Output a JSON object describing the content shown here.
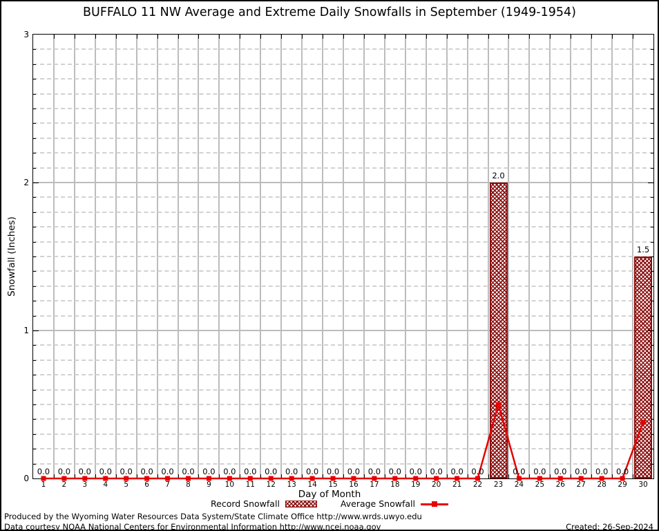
{
  "page": {
    "title": "BUFFALO 11 NW Average and Extreme Daily Snowfalls in September (1949-1954)",
    "footer": {
      "line1": "Produced by the Wyoming Water Resources Data System/State Climate Office http://www.wrds.uwyo.edu",
      "line2": "Data courtesy NOAA National Centers for Environmental Information http://www.ncei.noaa.gov",
      "created": "Created: 26-Sep-2024"
    }
  },
  "legend": {
    "record_label": "Record Snowfall",
    "average_label": "Average Snowfall"
  },
  "chart_data": {
    "type": "bar",
    "title": "BUFFALO 11 NW Average and Extreme Daily Snowfalls in September (1949-1954)",
    "xlabel": "Day of Month",
    "ylabel": "Snowfall (Inches)",
    "xlim": [
      0.5,
      30.5
    ],
    "ylim": [
      0,
      3
    ],
    "yticks": [
      0,
      1,
      2,
      3
    ],
    "minor_y_step": 0.1,
    "grid": true,
    "legend_position": "bottom-center",
    "categories": [
      1,
      2,
      3,
      4,
      5,
      6,
      7,
      8,
      9,
      10,
      11,
      12,
      13,
      14,
      15,
      16,
      17,
      18,
      19,
      20,
      21,
      22,
      23,
      24,
      25,
      26,
      27,
      28,
      29,
      30
    ],
    "series": [
      {
        "name": "Record Snowfall",
        "type": "bar",
        "color": "#8b0f0f",
        "values": [
          0,
          0,
          0,
          0,
          0,
          0,
          0,
          0,
          0,
          0,
          0,
          0,
          0,
          0,
          0,
          0,
          0,
          0,
          0,
          0,
          0,
          0,
          2.0,
          0,
          0,
          0,
          0,
          0,
          0,
          1.5
        ]
      },
      {
        "name": "Average Snowfall",
        "type": "line",
        "color": "#e60000",
        "values": [
          0,
          0,
          0,
          0,
          0,
          0,
          0,
          0,
          0,
          0,
          0,
          0,
          0,
          0,
          0,
          0,
          0,
          0,
          0,
          0,
          0,
          0,
          0.5,
          0,
          0,
          0,
          0,
          0,
          0,
          0.38
        ]
      }
    ],
    "point_labels": [
      "0.0",
      "0.0",
      "0.0",
      "0.0",
      "0.0",
      "0.0",
      "0.0",
      "0.0",
      "0.0",
      "0.0",
      "0.0",
      "0.0",
      "0.0",
      "0.0",
      "0.0",
      "0.0",
      "0.0",
      "0.0",
      "0.0",
      "0.0",
      "0.0",
      "0.0",
      "2.0",
      "0.0",
      "0.0",
      "0.0",
      "0.0",
      "0.0",
      "0.0",
      "1.5"
    ],
    "colors": {
      "grid_major": "#bcbcbc",
      "grid_minor": "#d2d2d2",
      "axis": "#000000",
      "bar": "#8b0f0f",
      "line": "#e60000"
    }
  }
}
